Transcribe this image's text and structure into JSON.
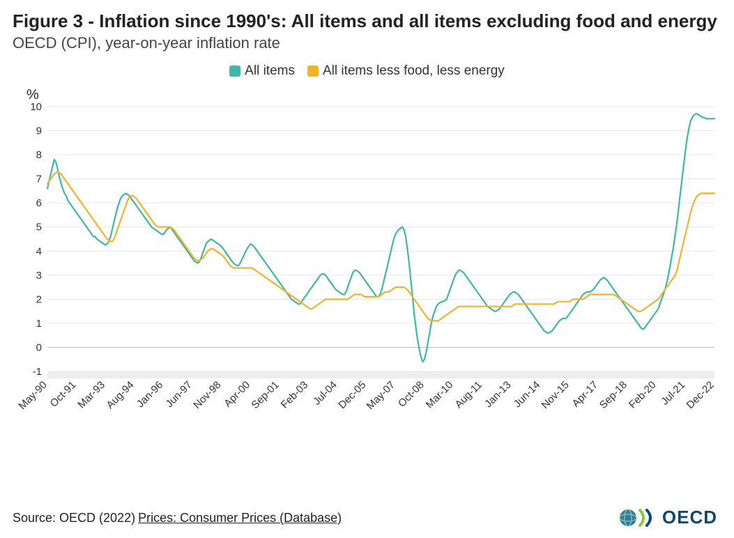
{
  "title": "Figure 3 - Inflation since 1990's: All items and all items excluding food and energy",
  "subtitle": "OECD (CPI), year-on-year inflation rate",
  "legend": {
    "items": [
      {
        "label": "All items",
        "color": "#3cb7a8"
      },
      {
        "label": "All items less food, less energy",
        "color": "#f2b22a"
      }
    ]
  },
  "footer": {
    "prefix": "Source: OECD (2022) ",
    "link": "Prices: Consumer Prices (Database)"
  },
  "oecd_logo": {
    "text": "OECD"
  },
  "chart": {
    "type": "line",
    "background_color": "#ffffff",
    "grid_color": "#e6e6e6",
    "axis_color": "#bfbfbf",
    "bottom_band_color": "#ededed",
    "y_unit": "%",
    "ylim": [
      -1,
      10
    ],
    "yticks": [
      -1,
      0,
      1,
      2,
      3,
      4,
      5,
      6,
      7,
      8,
      9,
      10
    ],
    "x_count": 392,
    "x_ticks": [
      {
        "i": 0,
        "label": "May-90"
      },
      {
        "i": 17,
        "label": "Oct-91"
      },
      {
        "i": 34,
        "label": "Mar-93"
      },
      {
        "i": 51,
        "label": "Aug-94"
      },
      {
        "i": 68,
        "label": "Jan-96"
      },
      {
        "i": 85,
        "label": "Jun-97"
      },
      {
        "i": 102,
        "label": "Nov-98"
      },
      {
        "i": 119,
        "label": "Apr-00"
      },
      {
        "i": 136,
        "label": "Sep-01"
      },
      {
        "i": 153,
        "label": "Feb-03"
      },
      {
        "i": 170,
        "label": "Jul-04"
      },
      {
        "i": 187,
        "label": "Dec-05"
      },
      {
        "i": 204,
        "label": "May-07"
      },
      {
        "i": 221,
        "label": "Oct-08"
      },
      {
        "i": 238,
        "label": "Mar-10"
      },
      {
        "i": 255,
        "label": "Aug-11"
      },
      {
        "i": 272,
        "label": "Jan-13"
      },
      {
        "i": 289,
        "label": "Jun-14"
      },
      {
        "i": 306,
        "label": "Nov-15"
      },
      {
        "i": 323,
        "label": "Apr-17"
      },
      {
        "i": 340,
        "label": "Sep-18"
      },
      {
        "i": 357,
        "label": "Feb-20"
      },
      {
        "i": 374,
        "label": "Jul-21"
      },
      {
        "i": 391,
        "label": "Dec-22"
      }
    ],
    "series": [
      {
        "name": "All items",
        "color": "#3cb7a8",
        "values": [
          6.6,
          6.9,
          7.2,
          7.5,
          7.8,
          7.7,
          7.4,
          7.1,
          6.8,
          6.6,
          6.4,
          6.3,
          6.1,
          6.0,
          5.9,
          5.8,
          5.7,
          5.6,
          5.5,
          5.4,
          5.3,
          5.2,
          5.1,
          5.0,
          4.9,
          4.8,
          4.7,
          4.6,
          4.6,
          4.5,
          4.45,
          4.4,
          4.35,
          4.3,
          4.25,
          4.3,
          4.4,
          4.6,
          4.9,
          5.2,
          5.5,
          5.8,
          6.0,
          6.2,
          6.3,
          6.35,
          6.4,
          6.35,
          6.3,
          6.2,
          6.1,
          6.0,
          5.9,
          5.8,
          5.7,
          5.6,
          5.5,
          5.4,
          5.3,
          5.2,
          5.1,
          5.0,
          4.95,
          4.9,
          4.85,
          4.8,
          4.75,
          4.7,
          4.7,
          4.8,
          4.9,
          4.95,
          5.0,
          4.9,
          4.8,
          4.7,
          4.6,
          4.5,
          4.4,
          4.3,
          4.2,
          4.1,
          4.0,
          3.9,
          3.8,
          3.7,
          3.6,
          3.55,
          3.5,
          3.55,
          3.7,
          3.9,
          4.1,
          4.3,
          4.4,
          4.45,
          4.5,
          4.45,
          4.4,
          4.35,
          4.3,
          4.25,
          4.2,
          4.1,
          4.0,
          3.9,
          3.8,
          3.7,
          3.6,
          3.5,
          3.45,
          3.4,
          3.4,
          3.5,
          3.65,
          3.8,
          3.95,
          4.1,
          4.2,
          4.3,
          4.25,
          4.2,
          4.1,
          4.0,
          3.9,
          3.8,
          3.7,
          3.6,
          3.5,
          3.4,
          3.3,
          3.2,
          3.1,
          3.0,
          2.9,
          2.8,
          2.7,
          2.6,
          2.5,
          2.4,
          2.3,
          2.2,
          2.1,
          2.0,
          1.95,
          1.9,
          1.85,
          1.8,
          1.8,
          1.9,
          2.0,
          2.1,
          2.2,
          2.3,
          2.4,
          2.5,
          2.6,
          2.7,
          2.8,
          2.9,
          3.0,
          3.05,
          3.05,
          3.0,
          2.9,
          2.8,
          2.7,
          2.6,
          2.5,
          2.4,
          2.35,
          2.3,
          2.25,
          2.2,
          2.2,
          2.3,
          2.5,
          2.7,
          2.9,
          3.1,
          3.2,
          3.2,
          3.15,
          3.1,
          3.0,
          2.9,
          2.8,
          2.7,
          2.6,
          2.5,
          2.4,
          2.3,
          2.2,
          2.1,
          2.1,
          2.2,
          2.4,
          2.7,
          3.0,
          3.3,
          3.6,
          3.9,
          4.2,
          4.5,
          4.7,
          4.8,
          4.9,
          4.95,
          5.0,
          4.9,
          4.6,
          4.1,
          3.5,
          2.8,
          2.1,
          1.4,
          0.8,
          0.3,
          -0.1,
          -0.4,
          -0.6,
          -0.5,
          -0.2,
          0.2,
          0.6,
          1.0,
          1.3,
          1.5,
          1.7,
          1.8,
          1.85,
          1.9,
          1.9,
          1.95,
          2.0,
          2.2,
          2.4,
          2.6,
          2.8,
          3.0,
          3.1,
          3.2,
          3.2,
          3.15,
          3.1,
          3.0,
          2.9,
          2.8,
          2.7,
          2.6,
          2.5,
          2.4,
          2.3,
          2.2,
          2.1,
          2.0,
          1.9,
          1.8,
          1.7,
          1.65,
          1.6,
          1.55,
          1.5,
          1.5,
          1.55,
          1.6,
          1.7,
          1.8,
          1.9,
          2.0,
          2.1,
          2.2,
          2.25,
          2.3,
          2.3,
          2.25,
          2.2,
          2.1,
          2.0,
          1.9,
          1.8,
          1.7,
          1.6,
          1.5,
          1.4,
          1.3,
          1.2,
          1.1,
          1.0,
          0.9,
          0.8,
          0.7,
          0.65,
          0.6,
          0.6,
          0.65,
          0.7,
          0.8,
          0.9,
          1.0,
          1.1,
          1.15,
          1.2,
          1.2,
          1.2,
          1.3,
          1.4,
          1.5,
          1.6,
          1.7,
          1.8,
          1.9,
          2.0,
          2.1,
          2.2,
          2.25,
          2.3,
          2.3,
          2.3,
          2.35,
          2.4,
          2.5,
          2.6,
          2.7,
          2.8,
          2.85,
          2.9,
          2.85,
          2.8,
          2.7,
          2.6,
          2.5,
          2.4,
          2.3,
          2.2,
          2.1,
          2.0,
          1.9,
          1.8,
          1.7,
          1.6,
          1.5,
          1.4,
          1.3,
          1.2,
          1.1,
          1.0,
          0.9,
          0.8,
          0.75,
          0.8,
          0.9,
          1.0,
          1.1,
          1.2,
          1.3,
          1.4,
          1.5,
          1.6,
          1.8,
          2.0,
          2.2,
          2.4,
          2.7,
          3.0,
          3.4,
          3.8,
          4.2,
          4.7,
          5.2,
          5.8,
          6.4,
          7.0,
          7.6,
          8.2,
          8.7,
          9.1,
          9.4,
          9.55,
          9.65,
          9.7,
          9.7,
          9.65,
          9.6,
          9.55,
          9.55,
          9.5,
          9.5,
          9.5,
          9.5,
          9.5,
          9.5
        ]
      },
      {
        "name": "All items less food, less energy",
        "color": "#f2b22a",
        "values": [
          6.8,
          6.9,
          7.0,
          7.1,
          7.2,
          7.25,
          7.3,
          7.25,
          7.2,
          7.1,
          7.0,
          6.9,
          6.8,
          6.7,
          6.6,
          6.5,
          6.4,
          6.3,
          6.2,
          6.1,
          6.0,
          5.9,
          5.8,
          5.7,
          5.6,
          5.5,
          5.4,
          5.3,
          5.2,
          5.1,
          5.0,
          4.9,
          4.8,
          4.7,
          4.6,
          4.5,
          4.45,
          4.4,
          4.4,
          4.5,
          4.7,
          4.9,
          5.1,
          5.3,
          5.5,
          5.7,
          5.9,
          6.1,
          6.25,
          6.3,
          6.3,
          6.25,
          6.2,
          6.1,
          6.0,
          5.9,
          5.8,
          5.7,
          5.6,
          5.5,
          5.4,
          5.3,
          5.2,
          5.1,
          5.05,
          5.0,
          5.0,
          5.0,
          5.0,
          5.0,
          5.0,
          5.0,
          5.0,
          4.95,
          4.9,
          4.8,
          4.7,
          4.6,
          4.5,
          4.4,
          4.3,
          4.2,
          4.1,
          4.0,
          3.9,
          3.8,
          3.7,
          3.65,
          3.6,
          3.6,
          3.65,
          3.7,
          3.8,
          3.9,
          4.0,
          4.05,
          4.1,
          4.1,
          4.05,
          4.0,
          3.95,
          3.9,
          3.85,
          3.8,
          3.7,
          3.6,
          3.5,
          3.4,
          3.35,
          3.3,
          3.3,
          3.3,
          3.3,
          3.3,
          3.3,
          3.3,
          3.3,
          3.3,
          3.3,
          3.3,
          3.3,
          3.25,
          3.2,
          3.15,
          3.1,
          3.05,
          3.0,
          2.95,
          2.9,
          2.85,
          2.8,
          2.75,
          2.7,
          2.65,
          2.6,
          2.55,
          2.5,
          2.45,
          2.4,
          2.35,
          2.3,
          2.25,
          2.2,
          2.15,
          2.1,
          2.05,
          2.0,
          1.95,
          1.9,
          1.85,
          1.8,
          1.75,
          1.7,
          1.65,
          1.6,
          1.6,
          1.65,
          1.7,
          1.75,
          1.8,
          1.85,
          1.9,
          1.95,
          2.0,
          2.0,
          2.0,
          2.0,
          2.0,
          2.0,
          2.0,
          2.0,
          2.0,
          2.0,
          2.0,
          2.0,
          2.0,
          2.0,
          2.05,
          2.1,
          2.15,
          2.2,
          2.2,
          2.2,
          2.2,
          2.2,
          2.15,
          2.1,
          2.1,
          2.1,
          2.1,
          2.1,
          2.1,
          2.1,
          2.1,
          2.1,
          2.15,
          2.2,
          2.25,
          2.3,
          2.3,
          2.3,
          2.35,
          2.4,
          2.45,
          2.5,
          2.5,
          2.5,
          2.5,
          2.5,
          2.5,
          2.45,
          2.4,
          2.3,
          2.2,
          2.1,
          2.0,
          1.9,
          1.8,
          1.7,
          1.6,
          1.5,
          1.4,
          1.3,
          1.2,
          1.15,
          1.1,
          1.1,
          1.1,
          1.1,
          1.1,
          1.15,
          1.2,
          1.25,
          1.3,
          1.35,
          1.4,
          1.45,
          1.5,
          1.55,
          1.6,
          1.65,
          1.7,
          1.7,
          1.7,
          1.7,
          1.7,
          1.7,
          1.7,
          1.7,
          1.7,
          1.7,
          1.7,
          1.7,
          1.7,
          1.7,
          1.7,
          1.7,
          1.7,
          1.7,
          1.7,
          1.7,
          1.7,
          1.7,
          1.7,
          1.7,
          1.7,
          1.7,
          1.7,
          1.7,
          1.7,
          1.7,
          1.7,
          1.7,
          1.75,
          1.8,
          1.8,
          1.8,
          1.8,
          1.8,
          1.8,
          1.8,
          1.8,
          1.8,
          1.8,
          1.8,
          1.8,
          1.8,
          1.8,
          1.8,
          1.8,
          1.8,
          1.8,
          1.8,
          1.8,
          1.8,
          1.8,
          1.8,
          1.8,
          1.85,
          1.9,
          1.9,
          1.9,
          1.9,
          1.9,
          1.9,
          1.9,
          1.9,
          1.95,
          2.0,
          2.0,
          2.0,
          2.0,
          2.0,
          2.0,
          2.0,
          2.05,
          2.1,
          2.15,
          2.2,
          2.2,
          2.2,
          2.2,
          2.2,
          2.2,
          2.2,
          2.2,
          2.2,
          2.2,
          2.2,
          2.2,
          2.2,
          2.2,
          2.2,
          2.15,
          2.1,
          2.05,
          2.0,
          1.95,
          1.9,
          1.85,
          1.8,
          1.75,
          1.7,
          1.65,
          1.6,
          1.55,
          1.5,
          1.5,
          1.5,
          1.55,
          1.6,
          1.65,
          1.7,
          1.75,
          1.8,
          1.85,
          1.9,
          1.95,
          2.0,
          2.1,
          2.2,
          2.3,
          2.4,
          2.5,
          2.6,
          2.7,
          2.8,
          2.9,
          3.0,
          3.2,
          3.5,
          3.8,
          4.1,
          4.4,
          4.7,
          5.0,
          5.3,
          5.6,
          5.85,
          6.05,
          6.2,
          6.3,
          6.35,
          6.4,
          6.4,
          6.4,
          6.4,
          6.4,
          6.4,
          6.4,
          6.4,
          6.4
        ]
      }
    ]
  }
}
